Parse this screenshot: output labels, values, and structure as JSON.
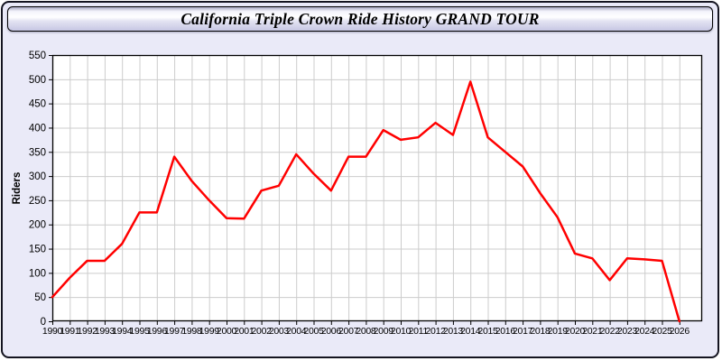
{
  "window": {
    "title": "California Triple Crown Ride History GRAND TOUR"
  },
  "style": {
    "background": "#EAEAF8",
    "plot_background": "#FFFFFF",
    "grid_color": "#CCCCCC",
    "frame_color": "#000000",
    "line_color": "#FF0000",
    "text_color": "#000000"
  },
  "chart_data": {
    "type": "line",
    "title": "California Triple Crown Ride History GRAND TOUR",
    "xlabel": "",
    "ylabel": "Riders",
    "ylim": [
      0,
      550
    ],
    "ytick_step": 50,
    "yticks": [
      0,
      50,
      100,
      150,
      200,
      250,
      300,
      350,
      400,
      450,
      500,
      550
    ],
    "grid": true,
    "legend_position": "none",
    "x": [
      1990,
      1991,
      1992,
      1993,
      1994,
      1995,
      1996,
      1997,
      1998,
      1999,
      2000,
      2001,
      2002,
      2003,
      2004,
      2005,
      2006,
      2007,
      2008,
      2009,
      2010,
      2011,
      2012,
      2013,
      2014,
      2015,
      2016,
      2017,
      2018,
      2019,
      2020,
      2021,
      2022,
      2023,
      2024,
      2025,
      2026
    ],
    "series": [
      {
        "name": "Riders",
        "color": "#FF0000",
        "values": [
          50,
          90,
          125,
          125,
          160,
          225,
          225,
          340,
          290,
          250,
          213,
          212,
          270,
          280,
          345,
          305,
          270,
          340,
          340,
          395,
          375,
          380,
          410,
          385,
          495,
          380,
          350,
          320,
          265,
          215,
          140,
          130,
          85,
          130,
          128,
          125,
          0
        ]
      }
    ]
  }
}
